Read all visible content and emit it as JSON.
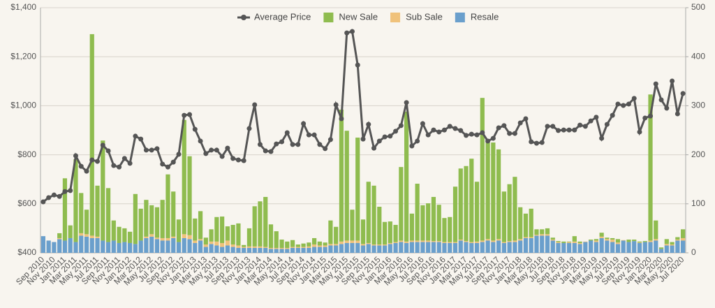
{
  "chart_data": {
    "type": "combo",
    "legend": "top",
    "grid": true,
    "categories": [
      "Sep 2010",
      null,
      "Nov 2010",
      null,
      "Jan 2011",
      null,
      "Mar 2011",
      null,
      "May 2011",
      null,
      "Jul 2011",
      null,
      "Sep 2011",
      null,
      "Nov 2011",
      null,
      "Jan 2012",
      null,
      "Mar 2012",
      null,
      "May 2012",
      null,
      "Jul 2012",
      null,
      "Sep 2012",
      null,
      "Nov 2012",
      null,
      "Jan 2013",
      null,
      "Mar 2013",
      null,
      "May 2013",
      null,
      "Jul 2013",
      null,
      "Sep 2013",
      null,
      "Nov 2013",
      null,
      "Jan 2014",
      null,
      "Mar 2014",
      null,
      "May 2014",
      null,
      "Jul 2014",
      null,
      "Sep 2014",
      null,
      "Nov 2014",
      null,
      "Jan 2015",
      null,
      "Mar 2015",
      null,
      "May 2015",
      null,
      "Jul 2015",
      null,
      "Sep 2015",
      null,
      "Nov 2015",
      null,
      "Jan 2016",
      null,
      "Mar 2016",
      null,
      "May 2016",
      null,
      "Jul 2016",
      null,
      "Sep 2016",
      null,
      "Nov 2016",
      null,
      "Jan 2017",
      null,
      "Mar 2017",
      null,
      "May 2017",
      null,
      "Jul 2017",
      null,
      "Sep 2017",
      null,
      "Nov 2017",
      null,
      "Jan 2018",
      null,
      "Mar 2018",
      null,
      "May 2018",
      null,
      "Jul 2018",
      null,
      "Sep 2018",
      null,
      "Nov 2018",
      null,
      "Jan 2019",
      null,
      "Mar 2019",
      null,
      "May 2019",
      null,
      "Jul 2019",
      null,
      "Sep 2019",
      null,
      "Nov 2019",
      null,
      "Jan 2020",
      null,
      "Mar 2020",
      null,
      "May 2020",
      null,
      "Jul 2020"
    ],
    "ylim": [
      400,
      1400
    ],
    "yticks": [
      {
        "value": 400,
        "label": "$400"
      },
      {
        "value": 600,
        "label": "$600"
      },
      {
        "value": 800,
        "label": "$800"
      },
      {
        "value": 1000,
        "label": "$1,000"
      },
      {
        "value": 1200,
        "label": "$1,200"
      },
      {
        "value": 1400,
        "label": "$1,400"
      }
    ],
    "y2lim": [
      0,
      500
    ],
    "y2ticks": [
      0,
      100,
      200,
      300,
      400,
      500
    ],
    "series": [
      {
        "name": "Average Price",
        "type": "line",
        "axis": "y",
        "color": "#555555",
        "values": [
          608,
          625,
          636,
          630,
          650,
          654,
          796,
          753,
          733,
          779,
          773,
          839,
          816,
          756,
          750,
          785,
          765,
          876,
          864,
          819,
          819,
          825,
          762,
          750,
          770,
          802,
          961,
          964,
          904,
          856,
          805,
          819,
          819,
          793,
          827,
          785,
          779,
          776,
          907,
          1004,
          842,
          816,
          813,
          844,
          853,
          890,
          842,
          842,
          927,
          881,
          881,
          842,
          825,
          862,
          1004,
          947,
          1297,
          1303,
          1166,
          864,
          924,
          827,
          856,
          873,
          876,
          896,
          919,
          1013,
          836,
          856,
          927,
          881,
          901,
          893,
          901,
          916,
          907,
          899,
          879,
          884,
          881,
          890,
          856,
          867,
          910,
          919,
          887,
          887,
          930,
          947,
          853,
          847,
          850,
          916,
          916,
          899,
          901,
          901,
          901,
          921,
          916,
          938,
          953,
          867,
          924,
          961,
          1007,
          1001,
          1007,
          1030,
          893,
          950,
          958,
          1089,
          1024,
          990,
          1101,
          967,
          1050
        ]
      },
      {
        "name": "New Sale",
        "type": "bar",
        "axis": "y2",
        "color": "#8fbc4f",
        "values": [
          0,
          0,
          0,
          10,
          127,
          26,
          169,
          82,
          50,
          411,
          104,
          204,
          110,
          41,
          33,
          28,
          23,
          102,
          65,
          75,
          59,
          62,
          78,
          130,
          92,
          46,
          233,
          161,
          45,
          57,
          14,
          25,
          50,
          54,
          29,
          40,
          45,
          4,
          37,
          82,
          92,
          102,
          48,
          34,
          17,
          13,
          14,
          5,
          7,
          8,
          13,
          8,
          6,
          48,
          35,
          269,
          224,
          63,
          210,
          50,
          125,
          120,
          77,
          46,
          44,
          35,
          150,
          265,
          55,
          116,
          72,
          76,
          90,
          74,
          49,
          51,
          113,
          145,
          153,
          170,
          122,
          291,
          197,
          200,
          183,
          103,
          116,
          130,
          65,
          48,
          58,
          11,
          10,
          12,
          4,
          2,
          3,
          1,
          11,
          3,
          0,
          2,
          3,
          8,
          3,
          3,
          7,
          0,
          5,
          3,
          2,
          2,
          298,
          38,
          3,
          10,
          5,
          5,
          18
        ]
      },
      {
        "name": "Sub Sale",
        "type": "bar",
        "axis": "y2",
        "color": "#f0c27b",
        "values": [
          0,
          0,
          0,
          2,
          0,
          0,
          0,
          5,
          5,
          5,
          3,
          0,
          0,
          0,
          0,
          0,
          0,
          0,
          0,
          3,
          5,
          3,
          5,
          5,
          3,
          0,
          8,
          8,
          5,
          3,
          5,
          5,
          8,
          8,
          10,
          5,
          5,
          2,
          3,
          3,
          3,
          2,
          2,
          2,
          2,
          2,
          2,
          2,
          2,
          3,
          5,
          3,
          3,
          3,
          3,
          5,
          5,
          5,
          5,
          3,
          2,
          2,
          2,
          2,
          2,
          2,
          3,
          3,
          3,
          3,
          3,
          3,
          2,
          2,
          2,
          2,
          2,
          2,
          2,
          2,
          3,
          3,
          3,
          3,
          3,
          2,
          2,
          3,
          3,
          2,
          2,
          2,
          3,
          3,
          2,
          2,
          0,
          2,
          3,
          2,
          1,
          0,
          3,
          3,
          3,
          5,
          3,
          1,
          0,
          0,
          1,
          0,
          3,
          3,
          0,
          3,
          2,
          2,
          5
        ]
      },
      {
        "name": "Resale",
        "type": "bar",
        "axis": "y2",
        "color": "#6a9fcc",
        "values": [
          34,
          25,
          22,
          28,
          25,
          30,
          22,
          35,
          33,
          30,
          30,
          25,
          22,
          25,
          20,
          22,
          20,
          18,
          25,
          30,
          33,
          28,
          25,
          25,
          30,
          22,
          30,
          28,
          20,
          25,
          12,
          18,
          15,
          12,
          15,
          12,
          10,
          10,
          10,
          10,
          10,
          10,
          8,
          8,
          8,
          8,
          10,
          10,
          10,
          10,
          12,
          12,
          12,
          15,
          15,
          18,
          20,
          20,
          20,
          15,
          18,
          15,
          15,
          15,
          18,
          20,
          22,
          20,
          22,
          22,
          22,
          22,
          22,
          22,
          20,
          20,
          20,
          25,
          22,
          20,
          20,
          22,
          25,
          22,
          25,
          20,
          22,
          22,
          25,
          30,
          30,
          35,
          35,
          35,
          25,
          20,
          20,
          20,
          20,
          18,
          22,
          25,
          22,
          30,
          25,
          22,
          18,
          25,
          22,
          24,
          20,
          22,
          22,
          25,
          8,
          15,
          15,
          25,
          25
        ]
      }
    ]
  }
}
